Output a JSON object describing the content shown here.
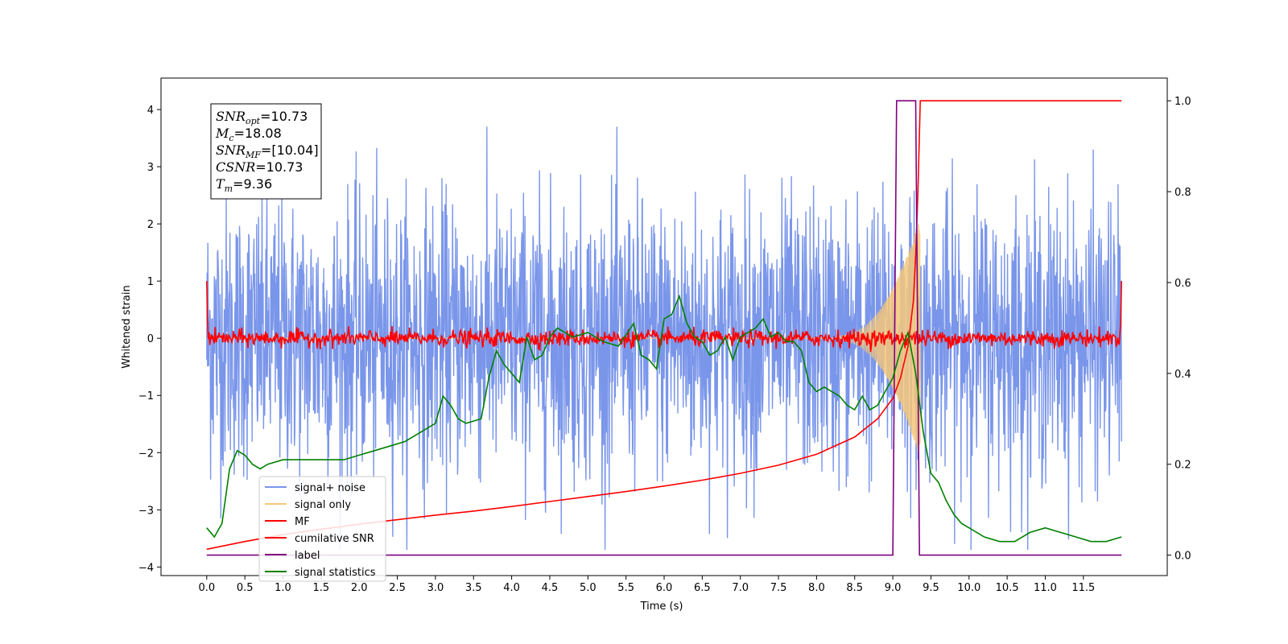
{
  "chart_data": {
    "type": "line",
    "xlabel": "Time (s)",
    "ylabel": "Whitened strain",
    "xlim": [
      -0.6,
      12.6
    ],
    "ylim": [
      -4.15,
      4.55
    ],
    "ylim_right": [
      -0.045,
      1.05
    ],
    "x_ticks": [
      "0.0",
      "0.5",
      "1.0",
      "1.5",
      "2.0",
      "2.5",
      "3.0",
      "3.5",
      "4.0",
      "4.5",
      "5.0",
      "5.5",
      "6.0",
      "6.5",
      "7.0",
      "7.5",
      "8.0",
      "8.5",
      "9.0",
      "9.5",
      "10.0",
      "10.5",
      "11.0",
      "11.5"
    ],
    "y_ticks_left": [
      "4",
      "3",
      "2",
      "1",
      "0",
      "−1",
      "−2",
      "−3",
      "−4"
    ],
    "y_ticks_right": [
      "1.0",
      "0.8",
      "0.6",
      "0.4",
      "0.2",
      "0.0"
    ],
    "annotation": [
      {
        "main": "SNR",
        "sub": "opt",
        "value": "=10.73"
      },
      {
        "main": "M",
        "sub": "c",
        "value": "=18.08"
      },
      {
        "main": "SNR",
        "sub": "MF",
        "value": "=[10.04]"
      },
      {
        "main": "CSNR",
        "sub": "",
        "value": "=10.73"
      },
      {
        "main": "T",
        "sub": "m",
        "value": "=9.36"
      }
    ],
    "series": [
      {
        "name": "signal+ noise",
        "color": "#4169e1",
        "opacity": 0.7,
        "axis": "left",
        "kind": "noise",
        "x_range": [
          0,
          12
        ],
        "envelope": 2.4,
        "peak": 3.7
      },
      {
        "name": "signal only",
        "color": "#f5c77a",
        "axis": "left",
        "kind": "chirp",
        "x_range": [
          0,
          9.36
        ],
        "chirp_start": 8.3,
        "max_amplitude": 2.3
      },
      {
        "name": "MF",
        "color": "#ff0000",
        "axis": "left",
        "kind": "noise",
        "x_range": [
          0,
          12
        ],
        "envelope": 0.12,
        "edge_value": 1.0
      },
      {
        "name": "cumilative SNR",
        "color": "#ff0000",
        "axis": "right",
        "x": [
          0.0,
          0.5,
          1.0,
          1.5,
          2.0,
          2.5,
          3.0,
          3.5,
          4.0,
          4.5,
          5.0,
          5.5,
          6.0,
          6.5,
          7.0,
          7.5,
          8.0,
          8.5,
          8.8,
          9.0,
          9.1,
          9.2,
          9.27,
          9.3,
          9.33,
          9.36,
          12.0
        ],
        "y": [
          0.013,
          0.03,
          0.045,
          0.057,
          0.068,
          0.078,
          0.088,
          0.097,
          0.107,
          0.118,
          0.129,
          0.14,
          0.152,
          0.165,
          0.18,
          0.198,
          0.222,
          0.26,
          0.3,
          0.345,
          0.39,
          0.46,
          0.56,
          0.66,
          0.8,
          1.0,
          1.0
        ]
      },
      {
        "name": "label",
        "color": "#800080",
        "axis": "right",
        "x": [
          0.0,
          9.0,
          9.05,
          9.3,
          9.35,
          12.0
        ],
        "y": [
          0.0,
          0.0,
          1.0,
          1.0,
          0.0,
          0.0
        ]
      },
      {
        "name": "signal statistics",
        "color": "#008000",
        "axis": "right",
        "x": [
          0.0,
          0.1,
          0.2,
          0.3,
          0.4,
          0.5,
          0.6,
          0.7,
          0.8,
          1.0,
          1.2,
          1.4,
          1.6,
          1.8,
          2.0,
          2.2,
          2.4,
          2.6,
          2.8,
          3.0,
          3.1,
          3.2,
          3.3,
          3.4,
          3.6,
          3.7,
          3.8,
          3.9,
          4.0,
          4.1,
          4.2,
          4.3,
          4.4,
          4.5,
          4.6,
          4.7,
          4.8,
          5.0,
          5.2,
          5.4,
          5.6,
          5.7,
          5.8,
          5.9,
          6.0,
          6.1,
          6.2,
          6.3,
          6.4,
          6.5,
          6.6,
          6.7,
          6.8,
          6.9,
          7.0,
          7.1,
          7.2,
          7.3,
          7.4,
          7.5,
          7.6,
          7.7,
          7.8,
          7.9,
          8.0,
          8.1,
          8.2,
          8.3,
          8.4,
          8.5,
          8.6,
          8.7,
          8.8,
          8.9,
          9.0,
          9.1,
          9.2,
          9.3,
          9.4,
          9.5,
          9.6,
          9.7,
          9.8,
          9.9,
          10.0,
          10.2,
          10.4,
          10.6,
          10.8,
          11.0,
          11.2,
          11.4,
          11.6,
          11.8,
          12.0
        ],
        "y": [
          0.06,
          0.04,
          0.07,
          0.19,
          0.23,
          0.22,
          0.2,
          0.19,
          0.2,
          0.21,
          0.21,
          0.21,
          0.21,
          0.21,
          0.22,
          0.23,
          0.24,
          0.25,
          0.27,
          0.29,
          0.35,
          0.33,
          0.3,
          0.29,
          0.3,
          0.39,
          0.45,
          0.42,
          0.4,
          0.38,
          0.48,
          0.43,
          0.44,
          0.48,
          0.5,
          0.49,
          0.48,
          0.49,
          0.47,
          0.46,
          0.51,
          0.44,
          0.43,
          0.41,
          0.52,
          0.53,
          0.57,
          0.51,
          0.48,
          0.47,
          0.44,
          0.45,
          0.48,
          0.43,
          0.48,
          0.49,
          0.5,
          0.52,
          0.48,
          0.49,
          0.47,
          0.47,
          0.45,
          0.38,
          0.36,
          0.37,
          0.36,
          0.35,
          0.33,
          0.32,
          0.35,
          0.32,
          0.33,
          0.36,
          0.39,
          0.45,
          0.49,
          0.4,
          0.27,
          0.18,
          0.16,
          0.12,
          0.09,
          0.07,
          0.06,
          0.04,
          0.03,
          0.03,
          0.05,
          0.06,
          0.05,
          0.04,
          0.03,
          0.03,
          0.04
        ]
      }
    ],
    "legend_position": "lower left",
    "grid": false
  }
}
